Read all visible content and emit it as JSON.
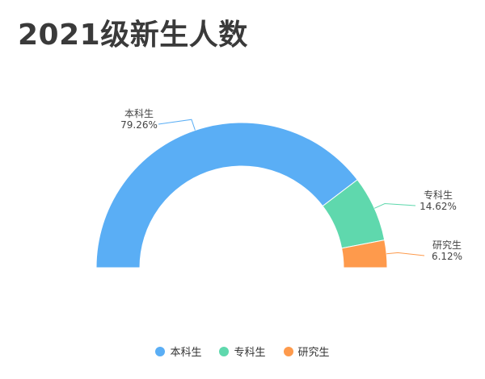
{
  "chart_title": "2021级新生人数",
  "chart_data": {
    "type": "pie",
    "title": "2021级新生人数",
    "variant": "half-donut",
    "categories": [
      "本科生",
      "专科生",
      "研究生"
    ],
    "values": [
      79.26,
      14.62,
      6.12
    ],
    "value_labels": [
      "79.26%",
      "14.62%",
      "6.12%"
    ],
    "colors": [
      "#5aaef5",
      "#5fd8ad",
      "#fe9a4c"
    ],
    "legend": "bottom"
  }
}
